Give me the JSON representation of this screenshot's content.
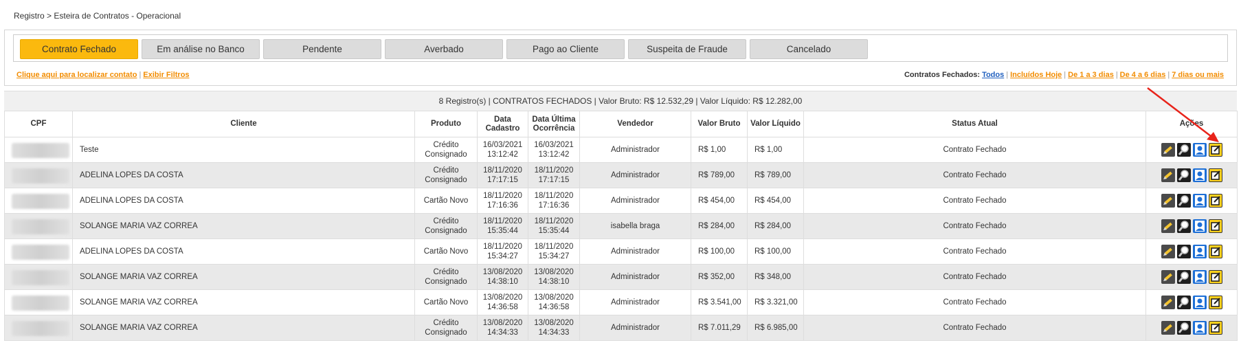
{
  "breadcrumb": "Registro > Esteira de Contratos - Operacional",
  "tabs": [
    {
      "label": "Contrato Fechado",
      "active": true
    },
    {
      "label": "Em análise no Banco",
      "active": false
    },
    {
      "label": "Pendente",
      "active": false
    },
    {
      "label": "Averbado",
      "active": false
    },
    {
      "label": "Pago ao Cliente",
      "active": false
    },
    {
      "label": "Suspeita de Fraude",
      "active": false
    },
    {
      "label": "Cancelado",
      "active": false
    }
  ],
  "links_left": {
    "locate": "Clique aqui para localizar contato",
    "filters": "Exibir Filtros"
  },
  "links_right": {
    "label": "Contratos Fechados:",
    "all": "Todos",
    "today": "Incluídos Hoje",
    "d1_3": "De 1 a 3 dias",
    "d4_6": "De 4 a 6 dias",
    "d7": "7 dias ou mais"
  },
  "summary": "8 Registro(s) | CONTRATOS FECHADOS | Valor Bruto: R$ 12.532,29 | Valor Líquido: R$ 12.282,00",
  "columns": {
    "cpf": "CPF",
    "cliente": "Cliente",
    "produto": "Produto",
    "data_cadastro": "Data Cadastro",
    "data_ultima": "Data Última Ocorrência",
    "vendedor": "Vendedor",
    "valor_bruto": "Valor Bruto",
    "valor_liquido": "Valor Líquido",
    "status": "Status Atual",
    "acoes": "Ações"
  },
  "rows": [
    {
      "cliente": "Teste",
      "produto": "Crédito Consignado",
      "cad_d": "16/03/2021",
      "cad_t": "13:12:42",
      "ult_d": "16/03/2021",
      "ult_t": "13:12:42",
      "vendedor": "Administrador",
      "bruto": "R$ 1,00",
      "liquido": "R$ 1,00",
      "status": "Contrato Fechado"
    },
    {
      "cliente": "ADELINA LOPES DA COSTA",
      "produto": "Crédito Consignado",
      "cad_d": "18/11/2020",
      "cad_t": "17:17:15",
      "ult_d": "18/11/2020",
      "ult_t": "17:17:15",
      "vendedor": "Administrador",
      "bruto": "R$ 789,00",
      "liquido": "R$ 789,00",
      "status": "Contrato Fechado"
    },
    {
      "cliente": "ADELINA LOPES DA COSTA",
      "produto": "Cartão Novo",
      "cad_d": "18/11/2020",
      "cad_t": "17:16:36",
      "ult_d": "18/11/2020",
      "ult_t": "17:16:36",
      "vendedor": "Administrador",
      "bruto": "R$ 454,00",
      "liquido": "R$ 454,00",
      "status": "Contrato Fechado"
    },
    {
      "cliente": "SOLANGE MARIA VAZ CORREA",
      "produto": "Crédito Consignado",
      "cad_d": "18/11/2020",
      "cad_t": "15:35:44",
      "ult_d": "18/11/2020",
      "ult_t": "15:35:44",
      "vendedor": "isabella braga",
      "bruto": "R$ 284,00",
      "liquido": "R$ 284,00",
      "status": "Contrato Fechado"
    },
    {
      "cliente": "ADELINA LOPES DA COSTA",
      "produto": "Cartão Novo",
      "cad_d": "18/11/2020",
      "cad_t": "15:34:27",
      "ult_d": "18/11/2020",
      "ult_t": "15:34:27",
      "vendedor": "Administrador",
      "bruto": "R$ 100,00",
      "liquido": "R$ 100,00",
      "status": "Contrato Fechado"
    },
    {
      "cliente": "SOLANGE MARIA VAZ CORREA",
      "produto": "Crédito Consignado",
      "cad_d": "13/08/2020",
      "cad_t": "14:38:10",
      "ult_d": "13/08/2020",
      "ult_t": "14:38:10",
      "vendedor": "Administrador",
      "bruto": "R$ 352,00",
      "liquido": "R$ 348,00",
      "status": "Contrato Fechado"
    },
    {
      "cliente": "SOLANGE MARIA VAZ CORREA",
      "produto": "Cartão Novo",
      "cad_d": "13/08/2020",
      "cad_t": "14:36:58",
      "ult_d": "13/08/2020",
      "ult_t": "14:36:58",
      "vendedor": "Administrador",
      "bruto": "R$ 3.541,00",
      "liquido": "R$ 3.321,00",
      "status": "Contrato Fechado"
    },
    {
      "cliente": "SOLANGE MARIA VAZ CORREA",
      "produto": "Crédito Consignado",
      "cad_d": "13/08/2020",
      "cad_t": "14:34:33",
      "ult_d": "13/08/2020",
      "ult_t": "14:34:33",
      "vendedor": "Administrador",
      "bruto": "R$ 7.011,29",
      "liquido": "R$ 6.985,00",
      "status": "Contrato Fechado"
    }
  ],
  "action_icons": [
    "pencil-icon",
    "magnifier-icon",
    "user-icon",
    "edit-icon"
  ],
  "colors": {
    "active_tab": "#fbb90e",
    "link": "#f28c00",
    "link_blue": "#1f5fbf",
    "annotation_arrow": "#e8231a"
  }
}
